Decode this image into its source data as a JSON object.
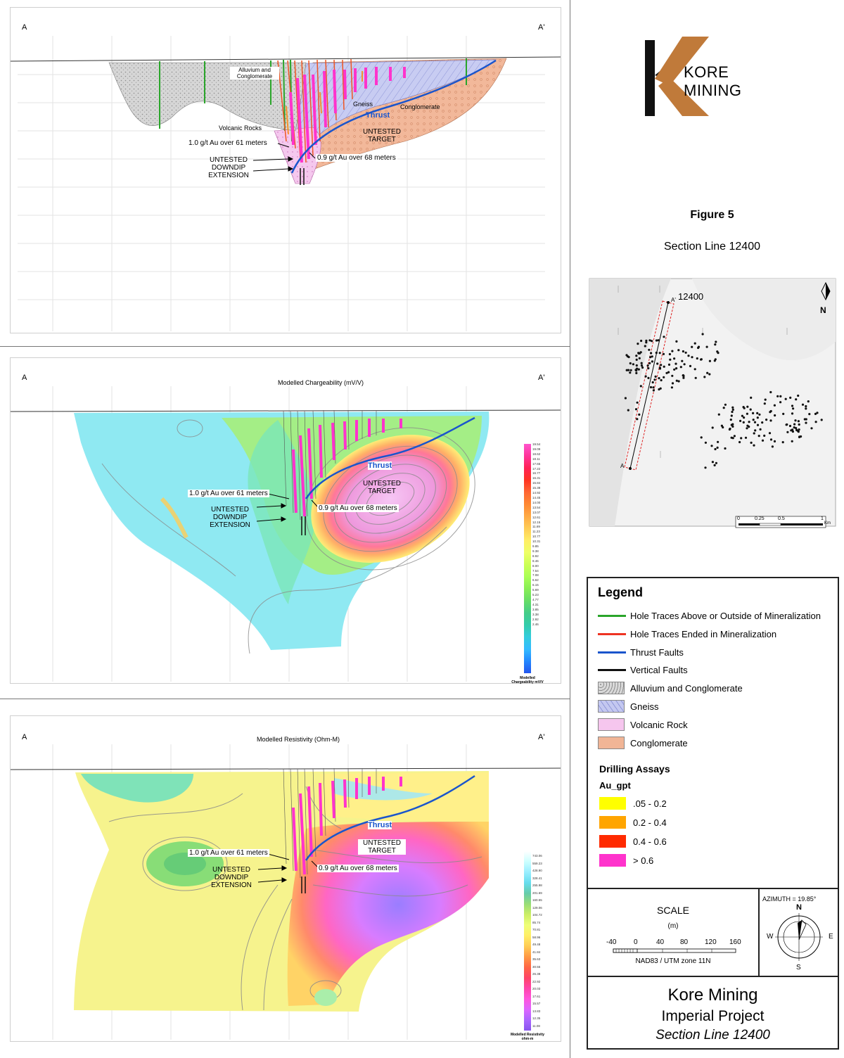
{
  "sections": {
    "endpoint_a": "A",
    "endpoint_a_prime": "A'",
    "top": {
      "labels": {
        "alluvium": "Alluvium and Conglomerate",
        "gneiss": "Gneiss",
        "conglomerate": "Conglomerate",
        "thrust": "Thrust",
        "volcanic": "Volcanic Rocks",
        "untested_target": "UNTESTED TARGET",
        "intercept_61": "1.0 g/t Au over 61 meters",
        "intercept_68": "0.9 g/t Au over 68 meters",
        "downdip": "UNTESTED DOWNDIP EXTENSION"
      }
    },
    "chargeability": {
      "title": "Modelled Chargeability (mV/V)",
      "thrust": "Thrust",
      "untested_target": "UNTESTED TARGET",
      "intercept_61": "1.0 g/t Au over 61 meters",
      "intercept_68": "0.9 g/t Au over 68 meters",
      "downdip": "UNTESTED DOWNDIP EXTENSION",
      "colorbar_name": "Modelled Chargeability mV/V",
      "colorbar_values": [
        "19.54",
        "19.09",
        "18.62",
        "18.11",
        "17.65",
        "17.22",
        "16.77",
        "16.31",
        "15.84",
        "15.38",
        "14.92",
        "14.45",
        "14.00",
        "13.54",
        "13.07",
        "12.61",
        "12.15",
        "11.69",
        "11.23",
        "10.77",
        "10.31",
        "9.85",
        "9.38",
        "8.92",
        "8.46",
        "8.00",
        "7.54",
        "7.08",
        "6.62",
        "6.15",
        "5.69",
        "5.23",
        "4.77",
        "4.31",
        "3.85",
        "3.38",
        "2.92",
        "2.46"
      ],
      "colors": [
        "#ff55cc",
        "#ff3399",
        "#ff2255",
        "#ff3322",
        "#ff6633",
        "#ff8833",
        "#ffaa44",
        "#ffcc55",
        "#ffee66",
        "#eeff66",
        "#ccff55",
        "#aaff55",
        "#88ee55",
        "#66dd66",
        "#44cc88",
        "#33ccaa",
        "#33ccdd",
        "#33bbff",
        "#2288ff",
        "#2255ee"
      ]
    },
    "resistivity": {
      "title": "Modelled Resistivity (Ohm-M)",
      "thrust": "Thrust",
      "untested_target": "UNTESTED TARGET",
      "intercept_61": "1.0 g/t Au over 61 meters",
      "intercept_68": "0.9 g/t Au over 68 meters",
      "downdip": "UNTESTED DOWNDIP EXTENSION",
      "colorbar_name": "Modelled Resistivity ohm-m",
      "colorbar_values": [
        "743.06",
        "559.23",
        "428.90",
        "328.41",
        "255.98",
        "201.69",
        "160.55",
        "129.06",
        "104.72",
        "85.74",
        "70.81",
        "58.96",
        "49.48",
        "41.84",
        "35.63",
        "30.55",
        "26.38",
        "22.92",
        "20.03",
        "17.61",
        "15.57",
        "13.83",
        "12.35",
        "11.08"
      ],
      "colors": [
        "#ffffff",
        "#ccffff",
        "#99eeff",
        "#66ddee",
        "#66ccaa",
        "#99dd77",
        "#ccee66",
        "#eeff77",
        "#ffee66",
        "#ffcc55",
        "#ff9944",
        "#ff6644",
        "#ff4466",
        "#ff44aa",
        "#ff55dd",
        "#dd66ff",
        "#aa66ff",
        "#8855ee"
      ]
    }
  },
  "brand": {
    "name": "KORE MINING",
    "accent_black": "#111111",
    "accent_copper": "#c07a3a"
  },
  "figure": {
    "number": "Figure 5",
    "subtitle": "Section Line 12400"
  },
  "map": {
    "line_label": "12400",
    "north": "N",
    "scale_ticks": [
      "0",
      "0.25",
      "0.5",
      "1"
    ],
    "scale_unit": "Km",
    "end_a": "A",
    "end_a_prime": "A'"
  },
  "legend": {
    "title": "Legend",
    "lines": [
      {
        "label": "Hole Traces Above or Outside of Mineralization",
        "color": "#2aa52a"
      },
      {
        "label": "Hole Traces Ended in Mineralization",
        "color": "#ee3322"
      },
      {
        "label": "Thrust Faults",
        "color": "#1a55cc"
      },
      {
        "label": "Vertical Faults",
        "color": "#111111"
      }
    ],
    "units": [
      {
        "label": "Alluvium and Conglomerate",
        "color": "#d9d9d9"
      },
      {
        "label": "Gneiss",
        "color": "#c4c8f0"
      },
      {
        "label": "Volcanic Rock",
        "color": "#f6c6ee"
      },
      {
        "label": "Conglomerate",
        "color": "#f1b596"
      }
    ],
    "assays_title": "Drilling Assays",
    "assays_field": "Au_gpt",
    "assays": [
      {
        "label": ".05 - 0.2",
        "color": "#ffff00"
      },
      {
        "label": "0.2 - 0.4",
        "color": "#ffa500"
      },
      {
        "label": "0.4 - 0.6",
        "color": "#ff2a00"
      },
      {
        "label": "> 0.6",
        "color": "#ff33cc"
      }
    ],
    "scale_title": "SCALE",
    "scale_unit": "(m)",
    "scale_ticks": [
      "-40",
      "0",
      "40",
      "80",
      "120",
      "160"
    ],
    "datum": "NAD83 / UTM zone 11N",
    "azimuth": "AZIMUTH = 19.85°",
    "compass": {
      "n": "N",
      "s": "S",
      "e": "E",
      "w": "W"
    },
    "company": "Kore Mining",
    "project": "Imperial Project",
    "section": "Section Line 12400"
  }
}
